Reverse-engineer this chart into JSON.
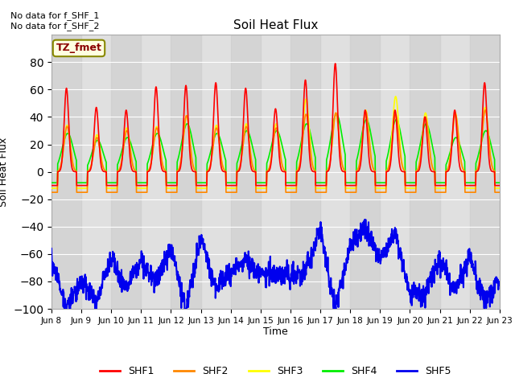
{
  "title": "Soil Heat Flux",
  "ylabel": "Soil Heat Flux",
  "xlabel": "Time",
  "annotation_text": "No data for f_SHF_1\nNo data for f_SHF_2",
  "box_label": "TZ_fmet",
  "ylim": [
    -100,
    100
  ],
  "xlim": [
    0,
    360
  ],
  "colors": {
    "SHF1": "#ff0000",
    "SHF2": "#ff8800",
    "SHF3": "#ffff00",
    "SHF4": "#00ee00",
    "SHF5": "#0000ee"
  },
  "legend_labels": [
    "SHF1",
    "SHF2",
    "SHF3",
    "SHF4",
    "SHF5"
  ],
  "xtick_labels": [
    "Jun 8",
    "Jun 9",
    "Jun 10",
    "Jun 11",
    "Jun 12",
    "Jun 13",
    "Jun 14",
    "Jun 15",
    "Jun 16",
    "Jun 17",
    "Jun 18",
    "Jun 19",
    "Jun 20",
    "Jun 21",
    "Jun 22",
    "Jun 23"
  ],
  "xtick_positions": [
    0,
    24,
    48,
    72,
    96,
    120,
    144,
    168,
    192,
    216,
    240,
    264,
    288,
    312,
    336,
    360
  ],
  "background_color": "#ffffff",
  "plot_bg_color": "#e0e0e0",
  "grid_color": "#ffffff",
  "yticks": [
    -100,
    -80,
    -60,
    -40,
    -20,
    0,
    20,
    40,
    60,
    80
  ]
}
